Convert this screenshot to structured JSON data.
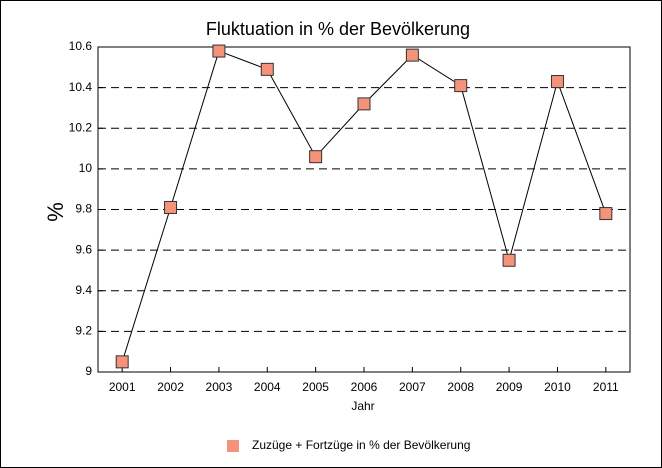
{
  "chart_data": {
    "type": "line",
    "title": "Fluktuation in % der Bevölkerung",
    "x_label": "Jahr",
    "y_label": "%",
    "categories": [
      "2001",
      "2002",
      "2003",
      "2004",
      "2005",
      "2006",
      "2007",
      "2008",
      "2009",
      "2010",
      "2011"
    ],
    "series": [
      {
        "name": "Zuzüge + Fortzüge in % der Bevölkerung",
        "color": "#f4937a",
        "values": [
          9.05,
          9.81,
          10.58,
          10.49,
          10.06,
          10.32,
          10.56,
          10.41,
          9.55,
          10.43,
          9.78
        ]
      }
    ],
    "ylim": [
      9,
      10.6
    ],
    "yticks": [
      9,
      9.2,
      9.4,
      9.6,
      9.8,
      10,
      10.2,
      10.4,
      10.6
    ],
    "grid": true,
    "legend": "bottom"
  }
}
